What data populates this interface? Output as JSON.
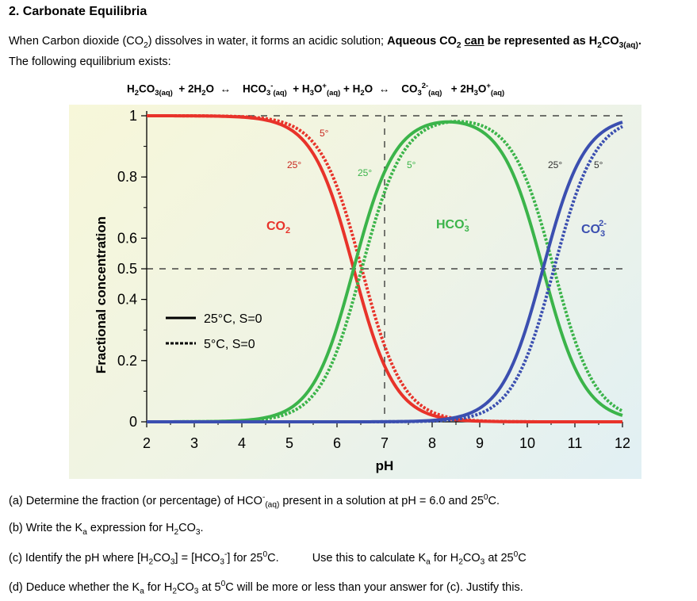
{
  "heading": "2. Carbonate Equilibria",
  "intro": {
    "line1_part1": "When Carbon dioxide (CO",
    "line1_part2": ") dissolves in water, it forms an acidic solution;",
    "line1_bold1": "Aqueous CO",
    "line1_bold2": "can",
    "line1_bold3": "be represented as H",
    "line1_bold4": "CO",
    "line1_bold4_sub": "3(aq)",
    "line2": "The following equilibrium exists:"
  },
  "equation": {
    "t1": "H",
    "t1b": "CO",
    "t1c": "3(aq)",
    "t2": "+ 2H",
    "t2b": "O",
    "arrow": "↔",
    "t3": "HCO",
    "t3b": "3",
    "t3c": "(aq)",
    "t4": "+ H",
    "t4b": "3",
    "t4c": "O",
    "t4d": "(aq)",
    "t5": "+ H",
    "t5b": "2",
    "t5c": "O",
    "t6": "CO",
    "t6b": "3",
    "t6c": "2-",
    "t6d": "(aq)",
    "t7": "+ 2H",
    "t7b": "3",
    "t7c": "O",
    "t7d": "(aq)"
  },
  "chart_data": {
    "type": "line",
    "xlabel": "pH",
    "ylabel": "Fractional concentration",
    "xlim": [
      2,
      12
    ],
    "ylim": [
      0,
      1
    ],
    "x_ticks": [
      "2",
      "3",
      "4",
      "5",
      "6",
      "7",
      "8",
      "9",
      "10",
      "11",
      "12"
    ],
    "y_ticks": [
      "0",
      "0.2",
      "0.4",
      "0.5",
      "0.6",
      "0.8",
      "1"
    ],
    "pK_25C": [
      6.35,
      10.33
    ],
    "pK_5C": [
      6.52,
      10.56
    ],
    "series": [
      {
        "name": "CO2",
        "temp": "25°C",
        "style": "solid",
        "color": "#e8332a"
      },
      {
        "name": "CO2",
        "temp": "5°C",
        "style": "dashed",
        "color": "#e8332a"
      },
      {
        "name": "HCO3-",
        "temp": "25°C",
        "style": "solid",
        "color": "#3bb44a"
      },
      {
        "name": "HCO3-",
        "temp": "5°C",
        "style": "dashed",
        "color": "#3bb44a"
      },
      {
        "name": "CO3 2-",
        "temp": "25°C",
        "style": "solid",
        "color": "#3b4fb0"
      },
      {
        "name": "CO3 2-",
        "temp": "5°C",
        "style": "dashed",
        "color": "#3b4fb0"
      }
    ],
    "annotations": {
      "co2_label": "CO",
      "co2_sub": "2",
      "hco3_label": "HCO",
      "hco3_sub": "3",
      "hco3_sup": "-",
      "co3_label": "CO",
      "co3_sub": "3",
      "co3_sup": "2-",
      "t25a": "25°",
      "t5a": "5°",
      "t25b": "25°",
      "t5b": "5°",
      "t25c": "25°",
      "t5c": "5°"
    },
    "legend": {
      "placement": "left-middle",
      "solid_label": "25°C, S=0",
      "dashed_label": "5°C, S=0"
    },
    "reference_lines": [
      0.5,
      1
    ],
    "grid": false
  },
  "questions": {
    "a1": "(a) Determine the fraction (or percentage) of HCO",
    "a2": "3",
    "a3": "(aq)",
    "a4": "present in a solution at pH = 6.0 and 25",
    "a5": "0",
    "a6": "C.",
    "b1": "(b) Write the K",
    "b2": "a",
    "b3": "expression for H",
    "b4": "2",
    "b5": "CO",
    "b6": "3",
    "b7": ".",
    "c1": "(c) Identify the pH where [H",
    "c2": "2",
    "c3": "CO",
    "c4": "3",
    "c5": "] = [HCO",
    "c6": "3",
    "c7": "-",
    "c8": "] for 25",
    "c9": "0",
    "c10": "C.",
    "c11": "Use this to calculate K",
    "c12": "a",
    "c13": "for H",
    "c14": "2",
    "c15": "CO",
    "c16": "3",
    "c17": "at 25",
    "c18": "0",
    "c19": "C",
    "d1": "(d) Deduce whether the K",
    "d2": "a",
    "d3": "for H",
    "d4": "2",
    "d5": "CO",
    "d6": "3",
    "d7": "at 5",
    "d8": "0",
    "d9": "C will be more or less than your answer for (c). Justify this."
  }
}
